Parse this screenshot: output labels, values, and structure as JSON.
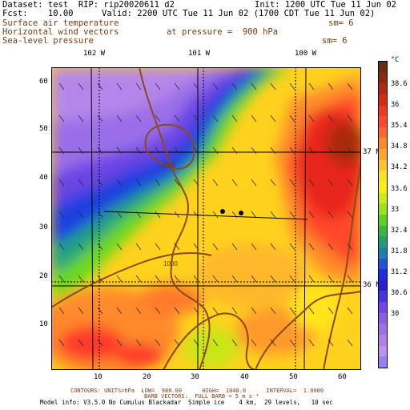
{
  "header": {
    "dataset_line": "Dataset: test  RIP: rip20020611 d2",
    "init_line": "Init: 1200 UTC Tue 11 Jun 02",
    "fcst_line": "Fcst:    10.00",
    "valid_line": "Valid: 2200 UTC Tue 11 Jun 02 (1700 CDT Tue 11 Jun 02)",
    "field1": "Surface air temperature",
    "field1_sm": "sm= 6",
    "field2": "Horizontal wind vectors",
    "pressure_label": "at pressure =  900 hPa",
    "field3": "Sea-level pressure",
    "field3_sm": "sm= 6"
  },
  "axes": {
    "x_ticks": [
      "10",
      "20",
      "30",
      "40",
      "50",
      "60"
    ],
    "y_ticks": [
      "60",
      "50",
      "40",
      "30",
      "20",
      "10"
    ],
    "lon_labels": [
      "102 W",
      "101 W",
      "100 W"
    ],
    "lat_labels": [
      "37 N",
      "36 N"
    ]
  },
  "contour_labels": [
    "1000",
    "1000"
  ],
  "colorbar": {
    "unit": "°C",
    "labels": [
      "38.6",
      "36",
      "35.4",
      "34.8",
      "34.2",
      "33.6",
      "33",
      "32.4",
      "31.8",
      "31.2",
      "30.6",
      "30"
    ],
    "colors": [
      "#6b2c10",
      "#8b2a0c",
      "#b02a10",
      "#d52a14",
      "#ee3a1a",
      "#ff4a2a",
      "#ff6a2c",
      "#ff8a2a",
      "#ffa82c",
      "#ffc32a",
      "#ffe11c",
      "#f7f00a",
      "#d2ea10",
      "#9ce01a",
      "#5dd020",
      "#33b840",
      "#1ea078",
      "#1a80b0",
      "#1c56d8",
      "#1c2ee0",
      "#2a20d0",
      "#4a34e0",
      "#7048e6",
      "#8c5ee8",
      "#a070e8",
      "#b280ea",
      "#bb92ee",
      "#9a7ff0"
    ]
  },
  "footer": {
    "line1": "CONTOURS: UNITS=hPa  LOW=  980.00      HIGH=  1040.0      INTERVAL=  1.0000",
    "line2": "BARB VECTORS:  FULL BARB = 5 m s⁻¹",
    "line3": "Model info: V3.5.0 No Cumulus Blackadar  Simple ice    4 km,  29 levels,   10 sec"
  }
}
